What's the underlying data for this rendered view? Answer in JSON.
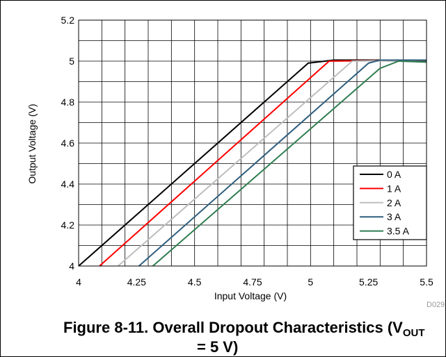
{
  "chart_data": {
    "type": "line",
    "xlabel": "Input Voltage (V)",
    "ylabel": "Output Voltage (V)",
    "xlim": [
      4,
      5.5
    ],
    "ylim": [
      4,
      5.2
    ],
    "xticks": [
      4,
      4.25,
      4.5,
      4.75,
      5,
      5.25,
      5.5
    ],
    "xtick_labels": [
      "4",
      "4.25",
      "4.5",
      "4.75",
      "5",
      "5.25",
      "5.5"
    ],
    "yticks": [
      4,
      4.2,
      4.4,
      4.6,
      4.8,
      5,
      5.2
    ],
    "ytick_labels": [
      "4",
      "4.2",
      "4.4",
      "4.6",
      "4.8",
      "5",
      "5.2"
    ],
    "grid": true,
    "legend_position": "bottom-right",
    "series": [
      {
        "name": "0 A",
        "color": "#000000",
        "points": [
          [
            4.0,
            4.0
          ],
          [
            4.99,
            4.99
          ],
          [
            5.1,
            5.005
          ],
          [
            5.5,
            5.005
          ]
        ]
      },
      {
        "name": "1 A",
        "color": "#ff0000",
        "points": [
          [
            4.09,
            4.0
          ],
          [
            5.08,
            5.0
          ],
          [
            5.5,
            5.005
          ]
        ]
      },
      {
        "name": "2 A",
        "color": "#bebebe",
        "points": [
          [
            4.17,
            4.0
          ],
          [
            5.18,
            5.0
          ],
          [
            5.5,
            5.005
          ]
        ]
      },
      {
        "name": "3 A",
        "color": "#2f5e7e",
        "points": [
          [
            4.26,
            4.0
          ],
          [
            5.25,
            4.99
          ],
          [
            5.3,
            5.005
          ],
          [
            5.5,
            5.005
          ]
        ]
      },
      {
        "name": "3.5 A",
        "color": "#2e7d4f",
        "points": [
          [
            4.32,
            4.0
          ],
          [
            5.3,
            4.965
          ],
          [
            5.38,
            5.0
          ],
          [
            5.5,
            4.995
          ]
        ]
      }
    ],
    "annotation": "D029"
  },
  "caption": {
    "text": "Figure 8-11. Overall Dropout Characteristics (V",
    "sub": "OUT",
    "line2": "= 5 V)"
  }
}
